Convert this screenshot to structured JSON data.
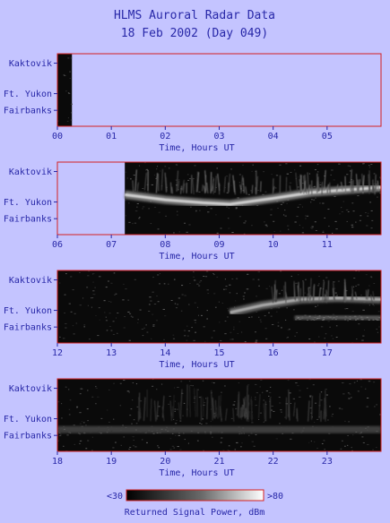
{
  "title": "HLMS Auroral Radar Data",
  "subtitle": "18 Feb 2002 (Day 049)",
  "chart_data": {
    "type": "heatmap",
    "title": "HLMS Auroral Radar Data",
    "subtitle": "18 Feb 2002 (Day 049)",
    "xlabel": "Time, Hours UT",
    "y_tick_labels": [
      "Kaktovik",
      "Ft. Yukon",
      "Fairbanks"
    ],
    "panels": [
      {
        "xlim": [
          0,
          6
        ],
        "x_ticks": [
          "00",
          "01",
          "02",
          "03",
          "04",
          "05"
        ],
        "data_coverage_hours": [
          [
            0,
            0.27
          ]
        ],
        "features": []
      },
      {
        "xlim": [
          6,
          12
        ],
        "x_ticks": [
          "06",
          "07",
          "08",
          "09",
          "10",
          "11"
        ],
        "data_coverage_hours": [
          [
            7.25,
            12
          ]
        ],
        "features": [
          {
            "type": "arc",
            "x": [
              7.25,
              8.0,
              8.7,
              9.2,
              10.0,
              10.7,
              12.0
            ],
            "y": [
              0.55,
              0.48,
              0.44,
              0.42,
              0.5,
              0.58,
              0.65
            ],
            "power": 0.8
          },
          {
            "type": "rays",
            "x": [
              7.4,
              12.0
            ],
            "y": [
              0.55,
              0.85
            ],
            "power": 0.45
          }
        ]
      },
      {
        "xlim": [
          12,
          18
        ],
        "x_ticks": [
          "12",
          "13",
          "14",
          "15",
          "16",
          "17"
        ],
        "data_coverage_hours": [
          [
            12,
            18
          ]
        ],
        "features": [
          {
            "type": "arc",
            "x": [
              15.2,
              15.8,
              16.5,
              17.2,
              18.0
            ],
            "y": [
              0.42,
              0.52,
              0.6,
              0.62,
              0.6
            ],
            "power": 0.65
          },
          {
            "type": "band",
            "x": [
              16.4,
              18.0
            ],
            "y": [
              0.32,
              0.38
            ],
            "power": 0.5
          },
          {
            "type": "rays",
            "x": [
              16.0,
              18.0
            ],
            "y": [
              0.55,
              0.85
            ],
            "power": 0.4
          }
        ]
      },
      {
        "xlim": [
          18,
          24
        ],
        "x_ticks": [
          "18",
          "19",
          "20",
          "21",
          "22",
          "23"
        ],
        "data_coverage_hours": [
          [
            18,
            24
          ]
        ],
        "features": [
          {
            "type": "band",
            "x": [
              18.0,
              24.0
            ],
            "y": [
              0.25,
              0.35
            ],
            "power": 0.35
          },
          {
            "type": "rays",
            "x": [
              19.5,
              23.0
            ],
            "y": [
              0.4,
              0.85
            ],
            "power": 0.25
          }
        ]
      }
    ],
    "colorbar": {
      "min_label": "<30",
      "max_label": ">80",
      "label": "Returned Signal Power, dBm",
      "colormap": "grayscale",
      "range_dbm": [
        30,
        80
      ]
    },
    "colors": {
      "background": "#c4c4ff",
      "text": "#2828a8",
      "frame": "#d42020"
    }
  }
}
